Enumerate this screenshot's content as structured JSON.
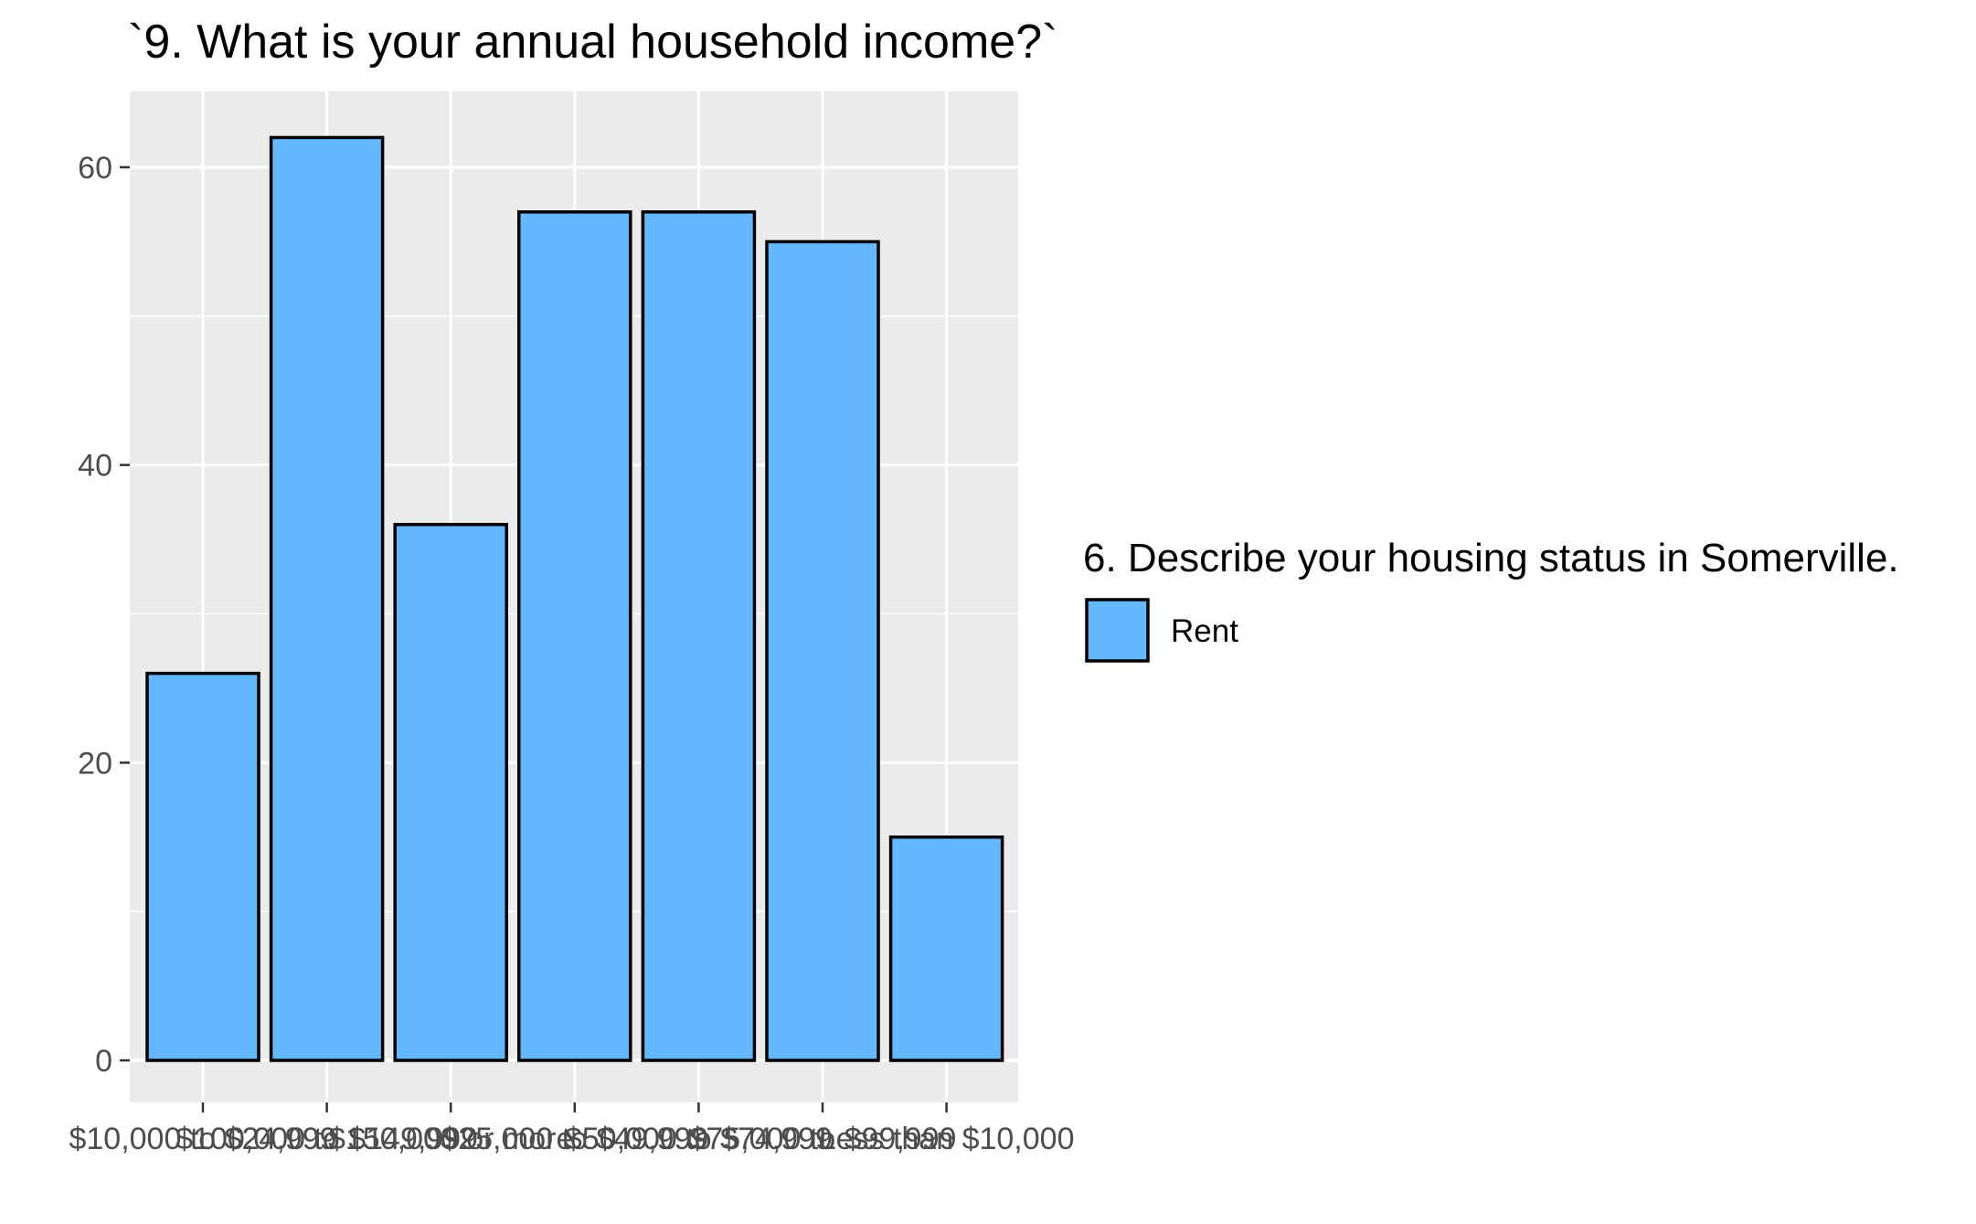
{
  "chart_data": {
    "type": "bar",
    "title": "`9. What is your annual household income?`",
    "xlabel": "",
    "ylabel": "",
    "categories": [
      "$10,000 to $24,999",
      "$100,000 to $149,999",
      "$150,000 or more",
      "$25,000 to $49,999",
      "$50,000 to $74,999",
      "$75,000 to $99,999",
      "Less than $10,000"
    ],
    "series": [
      {
        "name": "Rent",
        "values": [
          26,
          62,
          36,
          57,
          57,
          55,
          15
        ]
      }
    ],
    "ylim": [
      0,
      65
    ],
    "yticks": [
      0,
      20,
      40,
      60
    ],
    "grid": true,
    "legend": {
      "title": "6. Describe your housing status in Somerville.",
      "placement": "right",
      "items": [
        "Rent"
      ]
    },
    "colors": {
      "bar_fill": "#63b8ff",
      "bar_stroke": "#000000",
      "panel_background": "#ebebeb",
      "grid": "#ffffff",
      "tick_text": "#4d4d4d",
      "tick_mark": "#333333"
    }
  }
}
